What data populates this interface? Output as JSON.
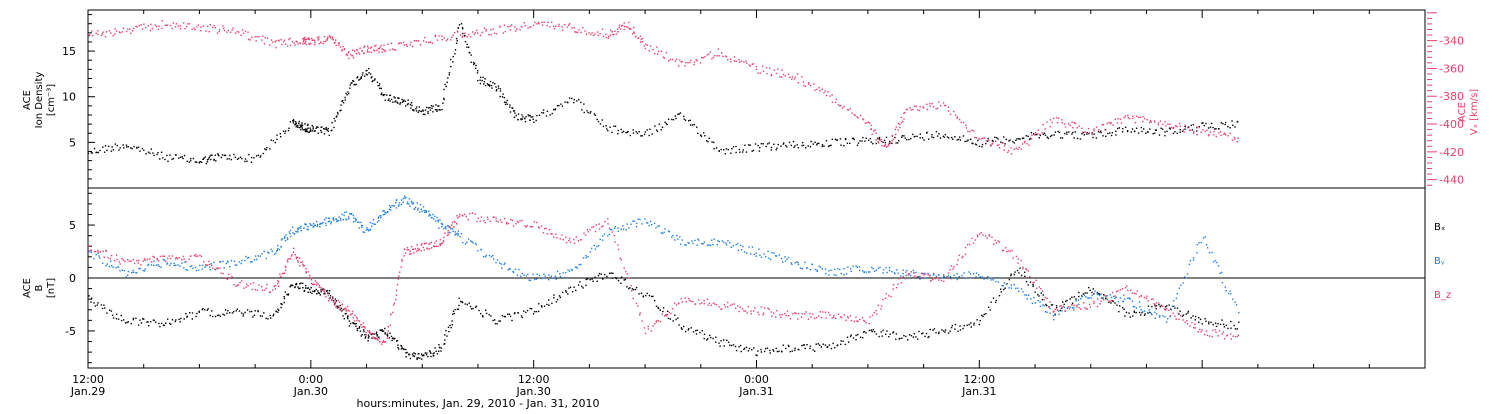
{
  "colors": {
    "black": "#000000",
    "pink": "#e8406a",
    "blue": "#1f7fe0"
  },
  "chart_data": [
    {
      "type": "scatter",
      "panel": "top",
      "ylabel_lines": [
        "ACE",
        "Ion Density",
        "[cm⁻³]"
      ],
      "y2label_lines": [
        "ACE",
        "Vₓ [km/s]"
      ],
      "ylim": [
        0,
        19.5
      ],
      "y2lim": [
        -446,
        -318
      ],
      "yticks": [
        5,
        10,
        15
      ],
      "y2ticks": [
        -340,
        -360,
        -380,
        -400,
        -420,
        -440
      ],
      "xlim": [
        12,
        84
      ],
      "series": [
        {
          "color": "#000000",
          "axis": "left",
          "x": [
            12,
            14,
            16,
            18,
            19,
            21,
            23,
            23.5,
            24,
            25,
            26,
            27,
            28,
            29,
            30,
            31,
            32,
            33,
            34,
            35,
            36,
            38,
            40,
            42,
            44,
            46,
            48,
            50,
            52,
            54,
            56,
            58,
            60,
            62,
            64,
            66,
            68,
            70,
            72,
            74
          ],
          "values": [
            4,
            4.8,
            3.5,
            3,
            3.5,
            3.3,
            7.2,
            6.8,
            6.5,
            6.2,
            11,
            13,
            10,
            9.5,
            8.5,
            9,
            18,
            12,
            11,
            8,
            7.5,
            10,
            6.5,
            6,
            8,
            4.2,
            4.5,
            4.8,
            5,
            5.2,
            5.5,
            6,
            5,
            5.5,
            6,
            5.8,
            6.5,
            6.2,
            6.8,
            7.2
          ]
        },
        {
          "color": "#e8406a",
          "axis": "right",
          "x": [
            12,
            14,
            16,
            18,
            20,
            22,
            23.5,
            24,
            25,
            26,
            27,
            28,
            30,
            32,
            34,
            36,
            38,
            40,
            41,
            42,
            44,
            46,
            48,
            50,
            52,
            54,
            55,
            56,
            58,
            60,
            62,
            64,
            66,
            68,
            70,
            72,
            74
          ],
          "values": [
            -335,
            -333,
            -328,
            -330,
            -333,
            -342,
            -340,
            -340,
            -338,
            -350,
            -346,
            -345,
            -340,
            -335,
            -332,
            -328,
            -330,
            -335,
            -328,
            -343,
            -357,
            -348,
            -360,
            -365,
            -380,
            -400,
            -418,
            -390,
            -385,
            -410,
            -420,
            -396,
            -405,
            -395,
            -400,
            -405,
            -410
          ]
        }
      ]
    },
    {
      "type": "scatter",
      "panel": "bottom",
      "ylabel_lines": [
        "ACE",
        "B",
        "[nT]"
      ],
      "ylim": [
        -8.5,
        8.5
      ],
      "yticks": [
        -5,
        0,
        5
      ],
      "xlim": [
        12,
        84
      ],
      "legend": {
        "position": "right",
        "entries": [
          {
            "label": "Bₓ",
            "color": "#000000"
          },
          {
            "label": "Bᵧ",
            "color": "#1f7fe0"
          },
          {
            "label": "B_z",
            "color": "#e8406a"
          }
        ]
      },
      "series": [
        {
          "color": "#000000",
          "x": [
            12,
            14,
            16,
            18,
            20,
            22,
            23,
            24,
            25,
            26,
            27,
            28,
            29,
            30,
            31,
            32,
            34,
            36,
            38,
            40,
            42,
            44,
            46,
            48,
            50,
            52,
            54,
            56,
            58,
            60,
            62,
            64,
            66,
            68,
            70,
            72,
            74
          ],
          "values": [
            -2,
            -4,
            -4.2,
            -3.2,
            -3.2,
            -3.5,
            -0.5,
            -1,
            -1.5,
            -4,
            -5.5,
            -5,
            -7,
            -7.5,
            -6.5,
            -2,
            -4,
            -3,
            -1,
            0.5,
            -1.5,
            -4.5,
            -6,
            -7,
            -6.5,
            -6.5,
            -5,
            -5.5,
            -5,
            -4,
            1,
            -3,
            -1,
            -3.5,
            -2.5,
            -4,
            -4.5
          ]
        },
        {
          "color": "#1f7fe0",
          "x": [
            12,
            14,
            16,
            18,
            20,
            22,
            23,
            24,
            25,
            26,
            27,
            28,
            29,
            30,
            31,
            32,
            34,
            36,
            38,
            40,
            42,
            44,
            46,
            48,
            50,
            52,
            54,
            56,
            58,
            60,
            62,
            64,
            66,
            68,
            70,
            72,
            74
          ],
          "values": [
            2.5,
            0.5,
            1.5,
            1,
            1.5,
            2.5,
            4.5,
            5,
            5.5,
            6,
            4.5,
            6.5,
            7.5,
            6.5,
            5,
            4,
            1.5,
            0,
            0.5,
            4.5,
            5.5,
            3.5,
            3.5,
            2.5,
            1.5,
            0.5,
            1,
            0.5,
            0,
            0.5,
            -1,
            -3.5,
            -1.5,
            -2,
            -4,
            4,
            -3.5
          ]
        },
        {
          "color": "#e8406a",
          "x": [
            12,
            14,
            16,
            18,
            20,
            22,
            23,
            24,
            25,
            26,
            27,
            28,
            29,
            30,
            31,
            32,
            34,
            36,
            38,
            40,
            42,
            44,
            46,
            48,
            50,
            52,
            54,
            56,
            58,
            60,
            62,
            64,
            66,
            68,
            70,
            72,
            74
          ],
          "values": [
            3,
            1.5,
            1.8,
            2,
            -0.5,
            -1,
            2.5,
            0,
            -2,
            -3,
            -5,
            -6,
            2.5,
            3,
            3.5,
            6,
            5.5,
            5,
            3.5,
            5.5,
            -5,
            -2,
            -2.5,
            -3,
            -3.5,
            -3.5,
            -4,
            0.5,
            0,
            4.5,
            2,
            -3,
            -2.5,
            -1,
            -3,
            -5,
            -5.5
          ]
        }
      ]
    }
  ],
  "x_axis": {
    "ticks": [
      {
        "x": 12,
        "time": "12:00",
        "date": "Jan.29"
      },
      {
        "x": 24,
        "time": "0:00",
        "date": "Jan.30"
      },
      {
        "x": 36,
        "time": "12:00",
        "date": "Jan.30"
      },
      {
        "x": 48,
        "time": "0:00",
        "date": "Jan.31"
      },
      {
        "x": 60,
        "time": "12:00",
        "date": "Jan.31"
      }
    ],
    "label": "hours:minutes, Jan. 29, 2010 - Jan. 31, 2010"
  }
}
